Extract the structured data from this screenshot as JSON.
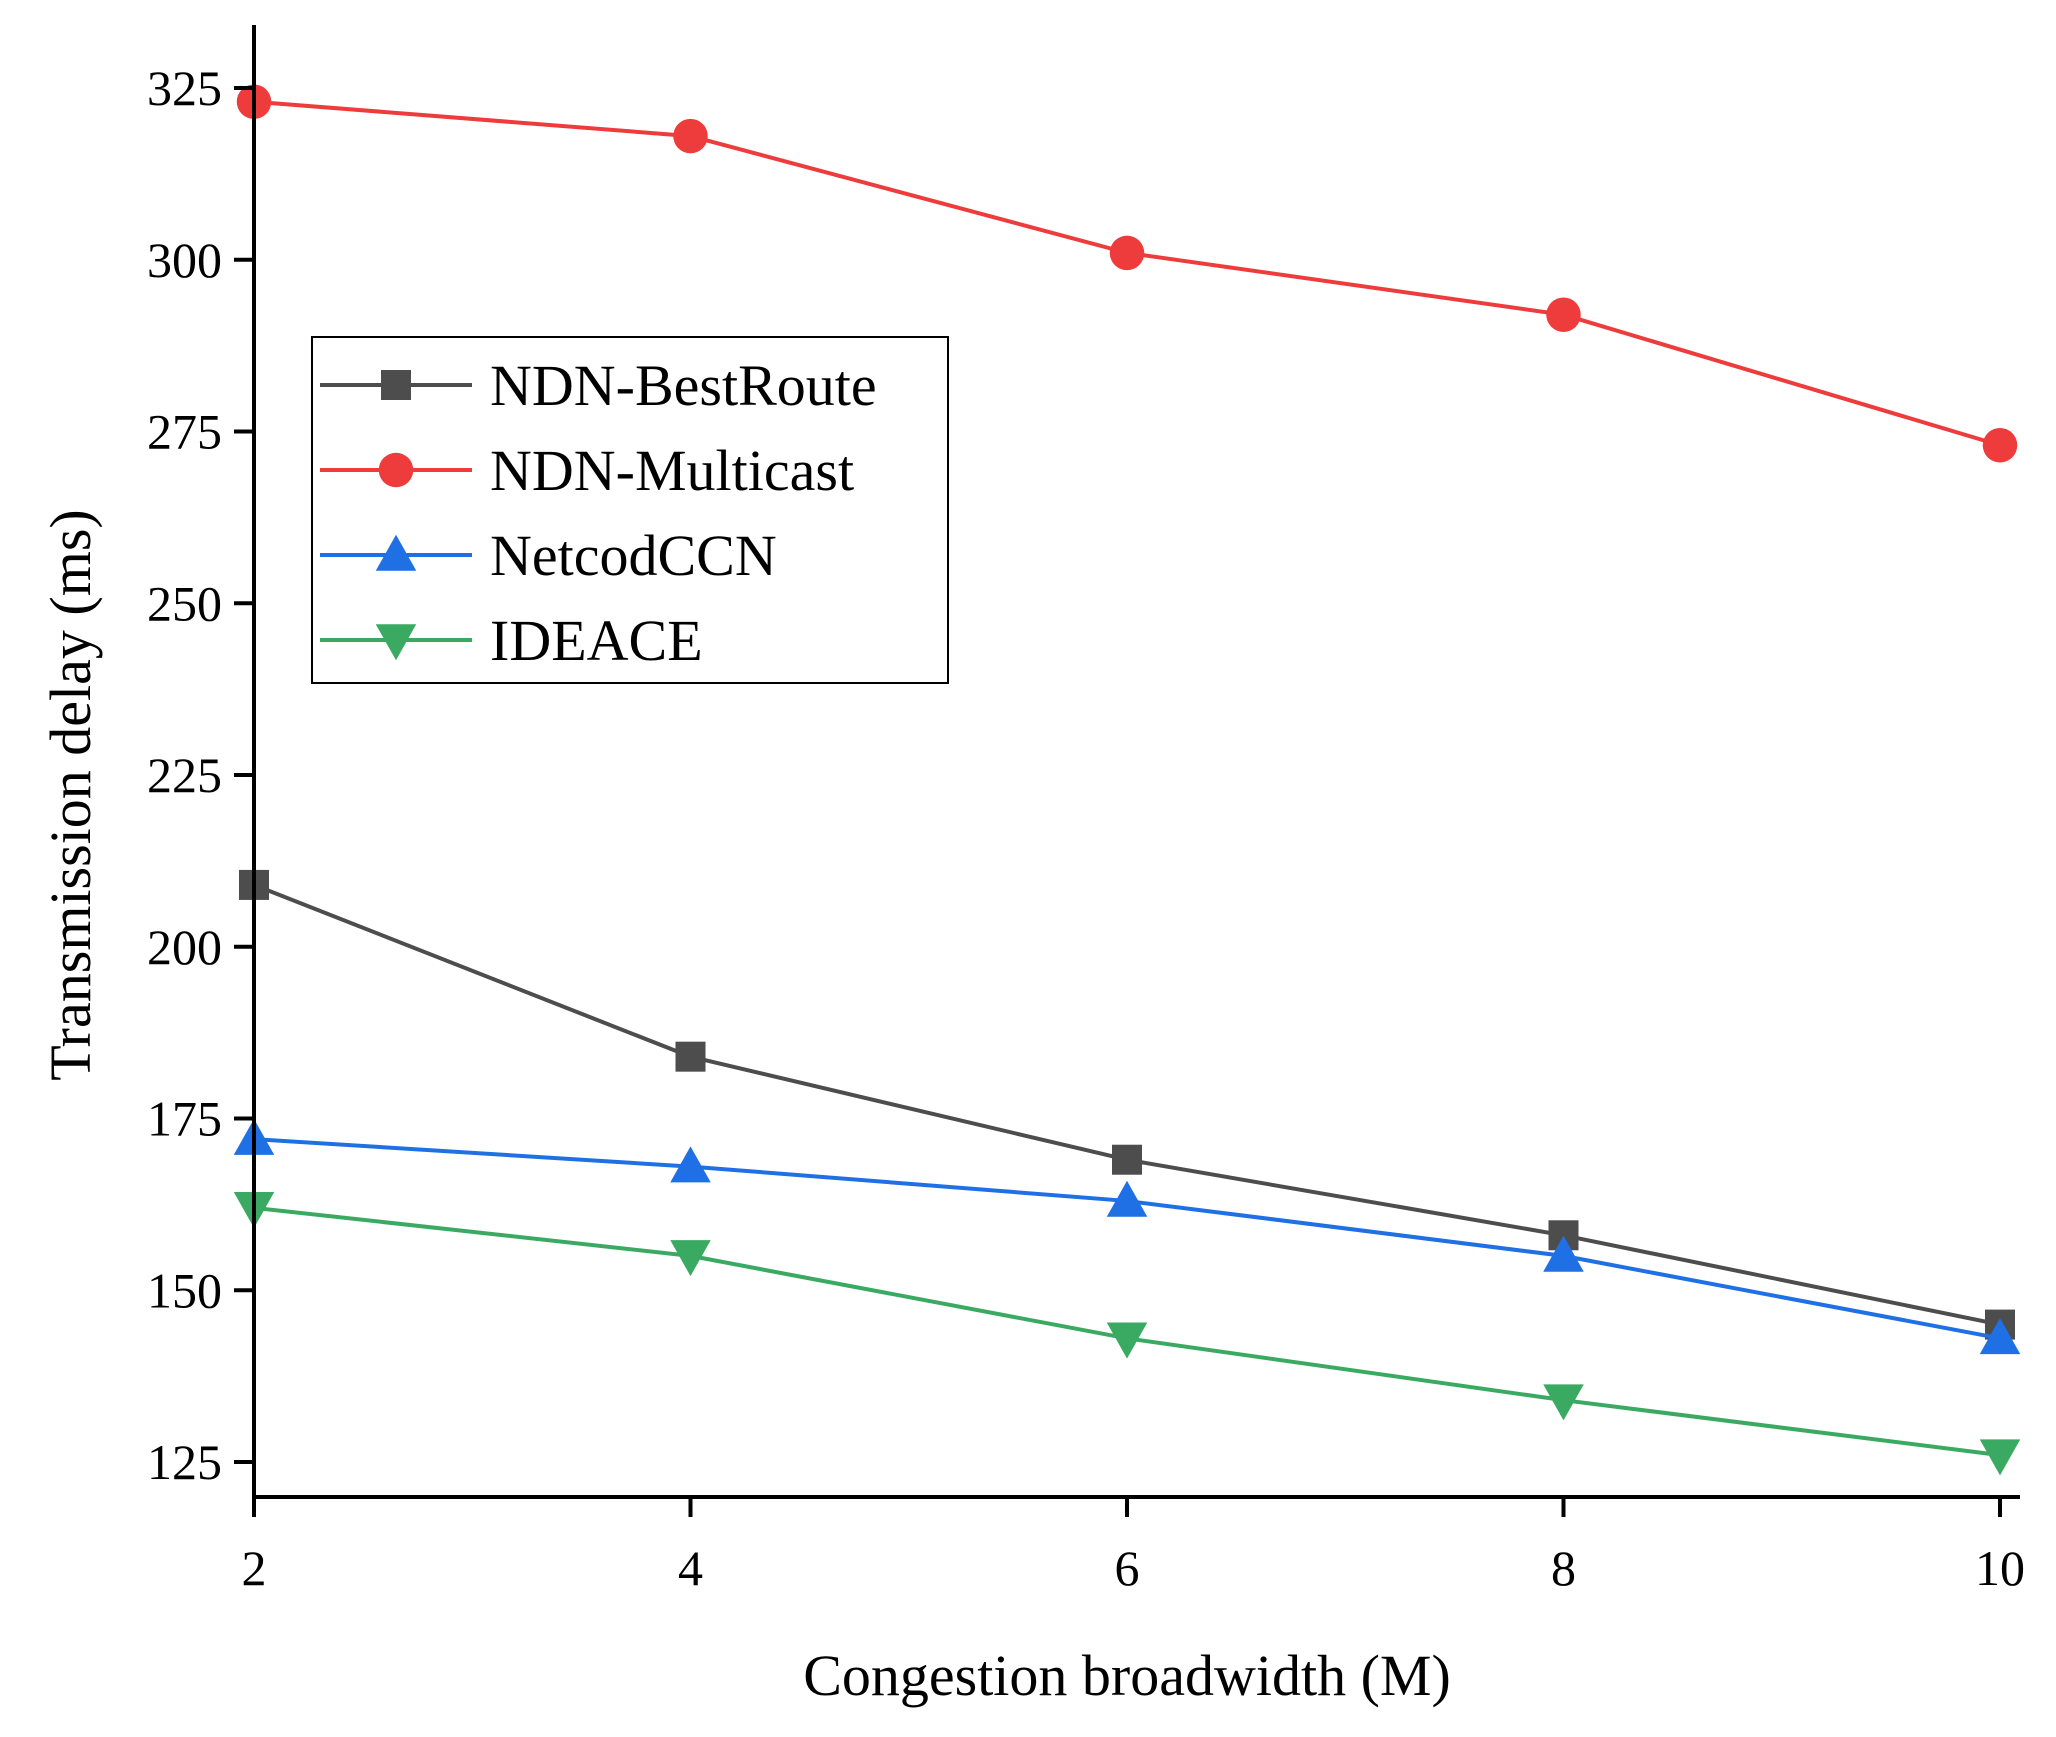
{
  "chart_data": {
    "type": "line",
    "title": "",
    "xlabel": "Congestion broadwidth (M)",
    "ylabel": "Transmission delay (ms)",
    "x": [
      2,
      4,
      6,
      8,
      10
    ],
    "xlim": [
      2,
      10
    ],
    "ylim": [
      120,
      330
    ],
    "xticks": [
      "2",
      "4",
      "6",
      "8",
      "10"
    ],
    "yticks": [
      "125",
      "150",
      "175",
      "200",
      "225",
      "250",
      "275",
      "300",
      "325"
    ],
    "grid": false,
    "legend_position": "upper-left",
    "series": [
      {
        "name": "NDN-BestRoute",
        "marker": "square",
        "color": "#4d4d4d",
        "values": [
          209,
          184,
          169,
          158,
          145
        ]
      },
      {
        "name": "NDN-Multicast",
        "marker": "circle",
        "color": "#ee3b3b",
        "values": [
          323,
          318,
          301,
          292,
          273
        ]
      },
      {
        "name": "NetcodCCN",
        "marker": "triangle-up",
        "color": "#1f6fe5",
        "values": [
          172,
          168,
          163,
          155,
          143
        ]
      },
      {
        "name": "IDEACE",
        "marker": "triangle-down",
        "color": "#3aaa62",
        "values": [
          162,
          155,
          143,
          134,
          126
        ]
      }
    ]
  }
}
